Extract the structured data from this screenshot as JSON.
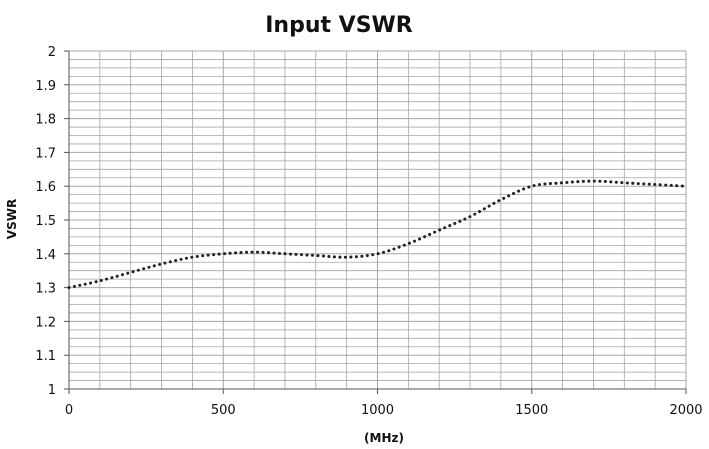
{
  "chart_data": {
    "type": "line",
    "title": "Input VSWR",
    "xlabel": "(MHz)",
    "ylabel": "VSWR",
    "xlim": [
      0,
      2000
    ],
    "ylim": [
      1,
      2
    ],
    "x_ticks": [
      "0",
      "500",
      "1000",
      "1500",
      "2000"
    ],
    "y_ticks": [
      "1",
      "1.1",
      "1.2",
      "1.3",
      "1.4",
      "1.5",
      "1.6",
      "1.7",
      "1.8",
      "1.9",
      "2"
    ],
    "grid": true,
    "legend": "none",
    "series": [
      {
        "line_style": "dotted",
        "color": "#222222",
        "x": [
          0,
          100,
          200,
          300,
          400,
          500,
          600,
          700,
          800,
          900,
          1000,
          1100,
          1200,
          1300,
          1400,
          1500,
          1600,
          1700,
          1800,
          1900,
          2000
        ],
        "y": [
          1.3,
          1.32,
          1.345,
          1.37,
          1.39,
          1.4,
          1.405,
          1.4,
          1.395,
          1.39,
          1.4,
          1.43,
          1.47,
          1.51,
          1.56,
          1.6,
          1.61,
          1.615,
          1.61,
          1.605,
          1.6
        ]
      }
    ]
  }
}
